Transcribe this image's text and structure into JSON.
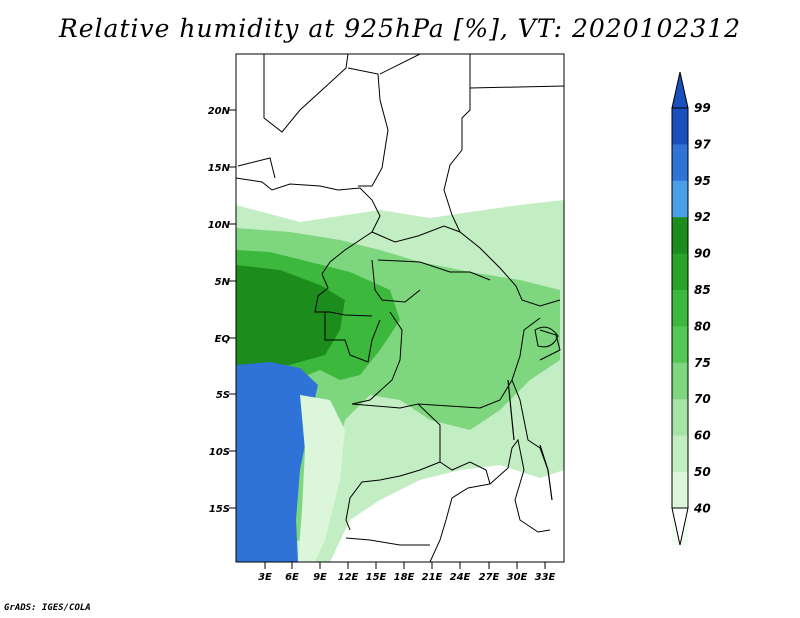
{
  "title": "Relative humidity at 925hPa [%], VT: 2020102312",
  "credit": "GrADS: IGES/COLA",
  "map": {
    "lat_labels": [
      "20N",
      "15N",
      "10N",
      "5N",
      "EQ",
      "5S",
      "10S",
      "15S"
    ],
    "lon_labels": [
      "3E",
      "6E",
      "9E",
      "12E",
      "15E",
      "18E",
      "21E",
      "24E",
      "27E",
      "30E",
      "33E"
    ]
  },
  "colorbar": {
    "levels": [
      "99",
      "97",
      "95",
      "92",
      "90",
      "85",
      "80",
      "75",
      "70",
      "60",
      "50",
      "40"
    ],
    "colors": [
      "#1a4fbe",
      "#2f72d8",
      "#4a9fe8",
      "#1c8c1c",
      "#29a329",
      "#3cb83c",
      "#55c855",
      "#7ed67e",
      "#a6e3a6",
      "#c3edc3",
      "#dcf6dc",
      "#f2fdf2"
    ]
  }
}
